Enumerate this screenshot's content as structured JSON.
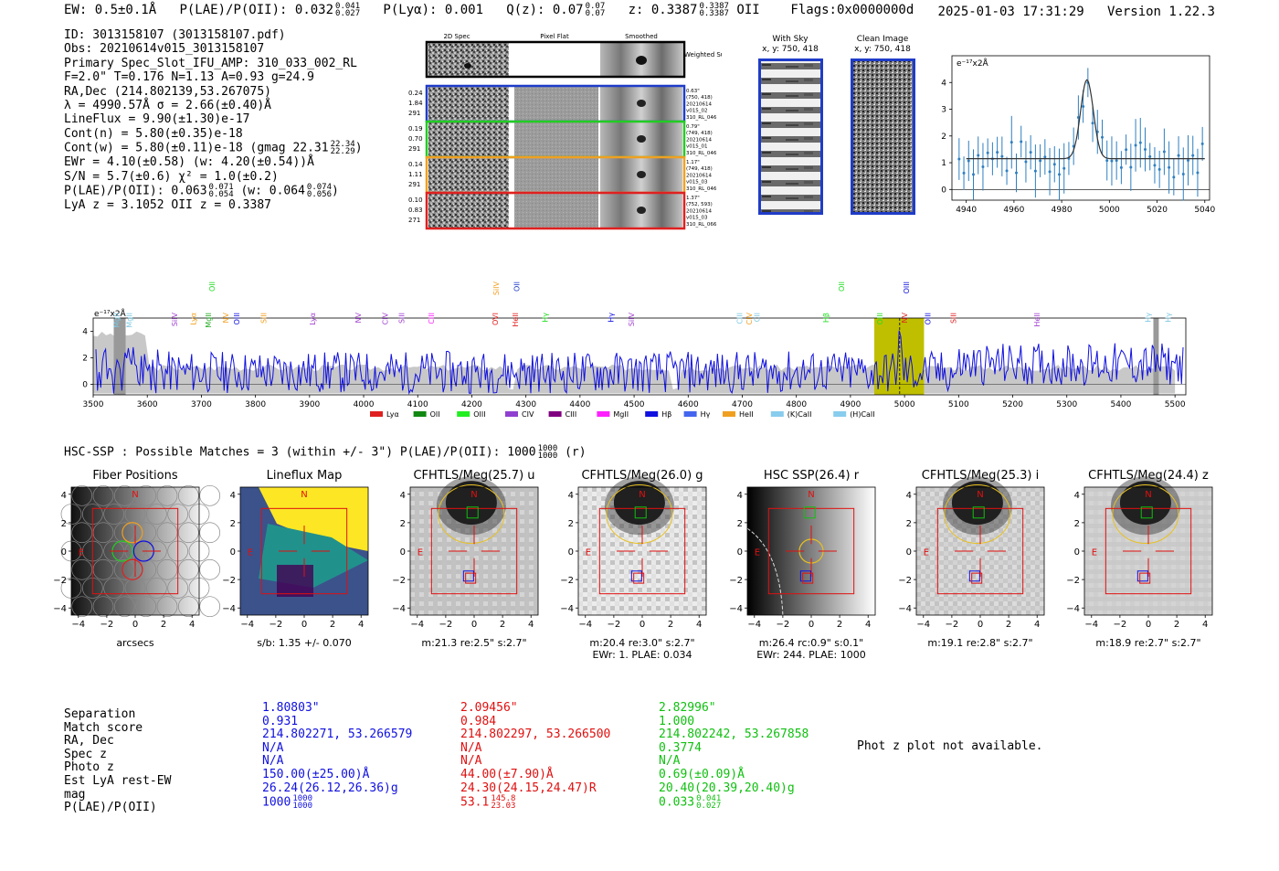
{
  "header": {
    "ew": "EW: 0.5±0.1Å",
    "plae_label": "P(LAE)/P(OII): 0.032",
    "plae_hi": "0.041",
    "plae_lo": "0.027",
    "plya": "P(Lyα): 0.001",
    "q_label": "Q(z): 0.07",
    "q_hi": "0.07",
    "q_lo": "0.07",
    "z_label": "z: 0.3387",
    "z_hi": "0.3387",
    "z_lo": "0.3387",
    "z_line": "OII",
    "flags": "Flags:0x0000000d",
    "datetime": "2025-01-03 17:31:29",
    "version": "Version 1.22.3"
  },
  "info": {
    "id": "ID: 3013158107 (3013158107.pdf)",
    "obs": "Obs: 20210614v015_3013158107",
    "primary": "Primary Spec_Slot_IFU_AMP: 310_033_002_RL",
    "params": "F=2.0\"  T=0.176  N=1.13  A=0.93  g=24.9",
    "radec": "RA,Dec (214.802139,53.267075)",
    "lambda": "λ = 4990.57Å  σ = 2.66(±0.40)Å",
    "lineflux": "LineFlux = 9.90(±1.30)e-17",
    "contn": "Cont(n) = 5.80(±0.35)e-18",
    "contw": "Cont(w) = 5.80(±0.11)e-18 (gmag 22.31",
    "gmag_hi": "22.34",
    "gmag_lo": "22.29",
    "ewr": "EWr = 4.10(±0.58) (w: 4.20(±0.54))Å",
    "sn": "S/N = 5.7(±0.6)  χ² = 1.0(±0.2)",
    "plae": "P(LAE)/P(OII): 0.063",
    "plae_hi": "0.071",
    "plae_lo": "0.054",
    "plae_w": "(w: 0.064",
    "plae_w_hi": "0.074",
    "plae_w_lo": "0.056",
    "lyaz": "LyA z = 3.1052  OII z = 0.3387"
  },
  "spec2d": {
    "col_titles": [
      "2D Spec",
      "Pixel Flat",
      "Smoothed"
    ],
    "weighted_sum": "Weighted Sum",
    "rows": [
      {
        "left": [
          "0.24",
          "1.84",
          "291"
        ],
        "right": [
          "0.63\"",
          "(750, 418)",
          "20210614",
          "v015_02",
          "310_RL_046"
        ],
        "color": "#1f3cc8"
      },
      {
        "left": [
          "0.19",
          "0.70",
          "291"
        ],
        "right": [
          "0.79\"",
          "(749, 418)",
          "20210614",
          "v015_01",
          "310_RL_046"
        ],
        "color": "#22cc22"
      },
      {
        "left": [
          "0.14",
          "1.11",
          "291"
        ],
        "right": [
          "1.17\"",
          "(749, 418)",
          "20210614",
          "v015_03",
          "310_RL_046"
        ],
        "color": "#f0a020"
      },
      {
        "left": [
          "0.10",
          "0.83",
          "271"
        ],
        "right": [
          "1.37\"",
          "(752, 593)",
          "20210614",
          "v015_03",
          "310_RL_066"
        ],
        "color": "#e02020"
      }
    ]
  },
  "cutouts": {
    "with_sky": "With Sky",
    "with_sky_xy": "x, y: 750, 418",
    "clean": "Clean Image",
    "clean_xy": "x, y: 750, 418"
  },
  "zoom_spec": {
    "unit": "e⁻¹⁷x2Å",
    "x_ticks": [
      "4940",
      "4960",
      "4980",
      "5000",
      "5020",
      "5040"
    ],
    "y_ticks": [
      "0",
      "1",
      "2",
      "3",
      "4"
    ]
  },
  "full_spec": {
    "unit": "e⁻¹⁷x2Å",
    "x_ticks": [
      "3500",
      "3600",
      "3700",
      "3800",
      "3900",
      "4000",
      "4100",
      "4200",
      "4300",
      "4400",
      "4500",
      "4600",
      "4700",
      "4800",
      "4900",
      "5000",
      "5100",
      "5200",
      "5300",
      "5400",
      "5500"
    ],
    "y_ticks": [
      "0",
      "2",
      "4"
    ],
    "line_labels": [
      {
        "t": "MgII",
        "c": "#7ec8e3",
        "w": 3548,
        "r": 0
      },
      {
        "t": "MgII",
        "c": "#7ec8e3",
        "w": 3572,
        "r": 0
      },
      {
        "t": "SiIV",
        "c": "#a040d0",
        "w": 3655,
        "r": 0
      },
      {
        "t": "Lyα",
        "c": "#f0a020",
        "w": 3690,
        "r": 0
      },
      {
        "t": "MgII",
        "c": "#22aa22",
        "w": 3718,
        "r": 0
      },
      {
        "t": "OII",
        "c": "#22dd22",
        "w": 3725,
        "r": 1
      },
      {
        "t": "NV",
        "c": "#f0a020",
        "w": 3750,
        "r": 0
      },
      {
        "t": "OIII",
        "c": "#1010e0",
        "w": 3770,
        "r": 0
      },
      {
        "t": "SiII",
        "c": "#f0a020",
        "w": 3820,
        "r": 0
      },
      {
        "t": "Lyα",
        "c": "#a040d0",
        "w": 3910,
        "r": 0
      },
      {
        "t": "NV",
        "c": "#a040d0",
        "w": 3995,
        "r": 0
      },
      {
        "t": "CIV",
        "c": "#a040d0",
        "w": 4045,
        "r": 0
      },
      {
        "t": "SiII",
        "c": "#a040d0",
        "w": 4075,
        "r": 0
      },
      {
        "t": "CIII",
        "c": "#ff20ff",
        "w": 4130,
        "r": 0
      },
      {
        "t": "OVI",
        "c": "#e02020",
        "w": 4248,
        "r": 0
      },
      {
        "t": "SiIV",
        "c": "#f0a020",
        "w": 4250,
        "r": 1
      },
      {
        "t": "HeII",
        "c": "#e02020",
        "w": 4285,
        "r": 0
      },
      {
        "t": "OII",
        "c": "#1f3cc8",
        "w": 4288,
        "r": 1
      },
      {
        "t": "Hγ",
        "c": "#22dd22",
        "w": 4340,
        "r": 0
      },
      {
        "t": "Hγ",
        "c": "#1010e0",
        "w": 4462,
        "r": 0
      },
      {
        "t": "SiIV",
        "c": "#a040d0",
        "w": 4500,
        "r": 0
      },
      {
        "t": "CIII",
        "c": "#7ec8e3",
        "w": 4700,
        "r": 0
      },
      {
        "t": "CIV",
        "c": "#f0a020",
        "w": 4718,
        "r": 0
      },
      {
        "t": "CII",
        "c": "#7ec8e3",
        "w": 4732,
        "r": 0
      },
      {
        "t": "Hβ",
        "c": "#22dd22",
        "w": 4860,
        "r": 0
      },
      {
        "t": "OII",
        "c": "#22dd22",
        "w": 4888,
        "r": 1
      },
      {
        "t": "OIII",
        "c": "#22dd22",
        "w": 4959,
        "r": 0
      },
      {
        "t": "NV",
        "c": "#e02020",
        "w": 5005,
        "r": 0
      },
      {
        "t": "OIII",
        "c": "#1010e0",
        "w": 5008,
        "r": 1
      },
      {
        "t": "OIII",
        "c": "#1010e0",
        "w": 5048,
        "r": 0
      },
      {
        "t": "SiII",
        "c": "#e02020",
        "w": 5095,
        "r": 0
      },
      {
        "t": "HeII",
        "c": "#a040d0",
        "w": 5250,
        "r": 0
      },
      {
        "t": "Hγ",
        "c": "#7ec8e3",
        "w": 5455,
        "r": 0
      },
      {
        "t": "Hγ",
        "c": "#7ec8e3",
        "w": 5492,
        "r": 0
      }
    ],
    "legend": [
      {
        "t": "Lyα",
        "c": "#e02020"
      },
      {
        "t": "OII",
        "c": "#118811"
      },
      {
        "t": "OIII",
        "c": "#22ee22"
      },
      {
        "t": "CIV",
        "c": "#9040d0"
      },
      {
        "t": "CIII",
        "c": "#800080"
      },
      {
        "t": "MgII",
        "c": "#ff20ff"
      },
      {
        "t": "Hβ",
        "c": "#1010e0"
      },
      {
        "t": "Hγ",
        "c": "#4466ee"
      },
      {
        "t": "HeII",
        "c": "#f0a020"
      },
      {
        "t": "(K)CaII",
        "c": "#88ccee"
      },
      {
        "t": "(H)CaII",
        "c": "#88ccee"
      }
    ]
  },
  "hsc": {
    "summary": "HSC-SSP : Possible Matches = 3 (within +/- 3\")  P(LAE)/P(OII): 1000",
    "sum_hi": "1000",
    "sum_lo": "1000",
    "sum_band": "(r)"
  },
  "panels": [
    {
      "title": "Fiber Positions",
      "foot": [
        "arcsecs"
      ]
    },
    {
      "title": "Lineflux Map",
      "foot": [
        "s/b: 1.35 +/- 0.070"
      ]
    },
    {
      "title": "CFHTLS/Meg(25.7) u",
      "foot": [
        "m:21.3  re:2.5\"  s:2.7\""
      ]
    },
    {
      "title": "CFHTLS/Meg(26.0) g",
      "foot": [
        "m:20.4  re:3.0\"  s:2.7\"",
        "EWr: 1. PLAE: 0.034"
      ]
    },
    {
      "title": "HSC SSP(26.4) r",
      "foot": [
        "m:26.4 rc:0.9\"  s:0.1\"",
        "EWr: 244. PLAE: 1000"
      ]
    },
    {
      "title": "CFHTLS/Meg(25.3) i",
      "foot": [
        "m:19.1  re:2.8\"  s:2.7\""
      ]
    },
    {
      "title": "CFHTLS/Meg(24.4) z",
      "foot": [
        "m:18.9  re:2.7\"  s:2.7\""
      ]
    }
  ],
  "panel_axes": {
    "x_ticks": [
      "−4",
      "−2",
      "0",
      "2",
      "4"
    ],
    "y_ticks": [
      "4",
      "2",
      "0",
      "−2",
      "−4"
    ],
    "north": "N",
    "east": "E"
  },
  "matches": {
    "labels": [
      "Separation",
      "Match score",
      "RA, Dec",
      "Spec z",
      "Photo z",
      "Est LyA rest-EW",
      "mag",
      "P(LAE)/P(OII)"
    ],
    "cols": [
      {
        "color": "#1010e0",
        "sep": "1.80803\"",
        "score": "0.931",
        "radec": "214.802271, 53.266579",
        "specz": "N/A",
        "photz": "N/A",
        "ew": "150.00(±25.00)Å",
        "mag": "26.24(26.12,26.36)g",
        "plae": "1000",
        "plae_hi": "1000",
        "plae_lo": "1000"
      },
      {
        "color": "#e01010",
        "sep": "2.09456\"",
        "score": "0.984",
        "radec": "214.802297, 53.266500",
        "specz": "N/A",
        "photz": "N/A",
        "ew": "44.00(±7.90)Å",
        "mag": "24.30(24.15,24.47)R",
        "plae": "53.1",
        "plae_hi": "145.8",
        "plae_lo": "23.03"
      },
      {
        "color": "#10c010",
        "sep": "2.82996\"",
        "score": "1.000",
        "radec": "214.802242, 53.267858",
        "specz": "0.3774",
        "photz": "N/A",
        "ew": "0.69(±0.09)Å",
        "mag": "20.40(20.39,20.40)g",
        "plae": "0.033",
        "plae_hi": "0.041",
        "plae_lo": "0.027"
      }
    ],
    "photz_msg": "Phot z plot not available."
  }
}
